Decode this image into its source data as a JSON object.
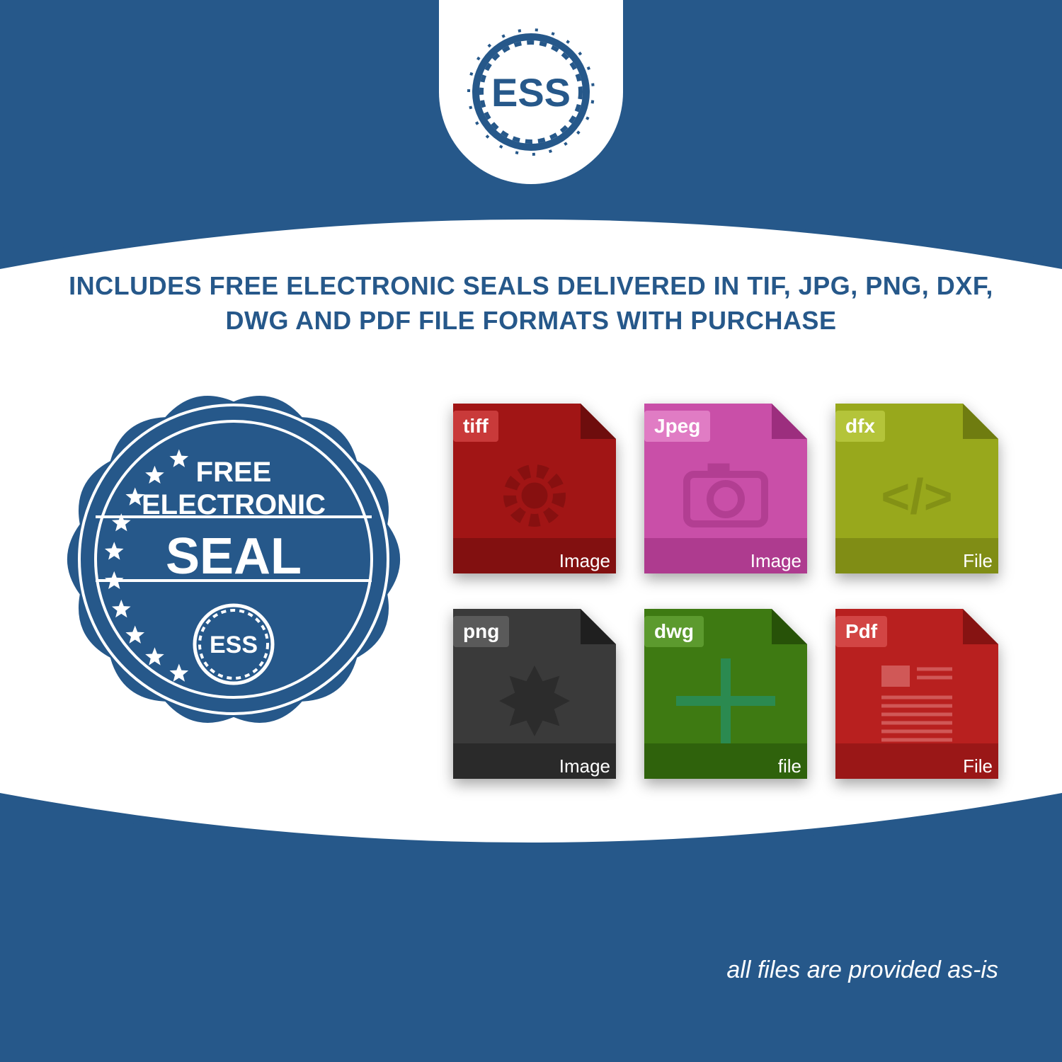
{
  "colors": {
    "brand_blue": "#26588a",
    "white": "#ffffff"
  },
  "logo": {
    "text": "ESS",
    "shield_bg": "#ffffff",
    "gear_stroke": "#26588a",
    "text_color": "#26588a",
    "font_size": 56,
    "font_weight": 800
  },
  "headline": {
    "text": "INCLUDES FREE ELECTRONIC SEALS DELIVERED IN TIF, JPG, PNG, DXF, DWG AND PDF FILE FORMATS WITH PURCHASE",
    "color": "#26588a",
    "font_size": 36,
    "font_weight": 800
  },
  "seal_badge": {
    "line1": "FREE",
    "line2": "ELECTRONIC",
    "line3": "SEAL",
    "inner_text": "ESS",
    "bg": "#26588a",
    "outline": "#ffffff",
    "text_color": "#ffffff",
    "font_size_small": 40,
    "font_size_large": 72,
    "star_count": 10
  },
  "file_icons": [
    {
      "format_label": "tiff",
      "bottom_label": "Image",
      "body_color": "#a11515",
      "body_color_dark": "#6e0d0d",
      "tab_color": "#c93a3a",
      "center_glyph": "gear"
    },
    {
      "format_label": "Jpeg",
      "bottom_label": "Image",
      "body_color": "#c94fa8",
      "body_color_dark": "#9c2e7e",
      "tab_color": "#e07cc4",
      "center_glyph": "camera"
    },
    {
      "format_label": "dfx",
      "bottom_label": "File",
      "body_color": "#98a81c",
      "body_color_dark": "#6f7c10",
      "tab_color": "#b4c43a",
      "center_glyph": "code"
    },
    {
      "format_label": "png",
      "bottom_label": "Image",
      "body_color": "#3a3a3a",
      "body_color_dark": "#1f1f1f",
      "tab_color": "#5a5a5a",
      "center_glyph": "starburst"
    },
    {
      "format_label": "dwg",
      "bottom_label": "file",
      "body_color": "#3e7a12",
      "body_color_dark": "#275208",
      "tab_color": "#5c9a2e",
      "center_glyph": "crosshair"
    },
    {
      "format_label": "Pdf",
      "bottom_label": "File",
      "body_color": "#b8201f",
      "body_color_dark": "#861312",
      "tab_color": "#d24544",
      "center_glyph": "doclines"
    }
  ],
  "disclaimer": {
    "text": "all files are provided as-is",
    "color": "#ffffff",
    "font_size": 34,
    "font_style": "italic"
  },
  "arcs": {
    "top_arc_stroke": "#26588a",
    "bottom_arc_stroke": "#26588a",
    "stroke_width": 6
  }
}
